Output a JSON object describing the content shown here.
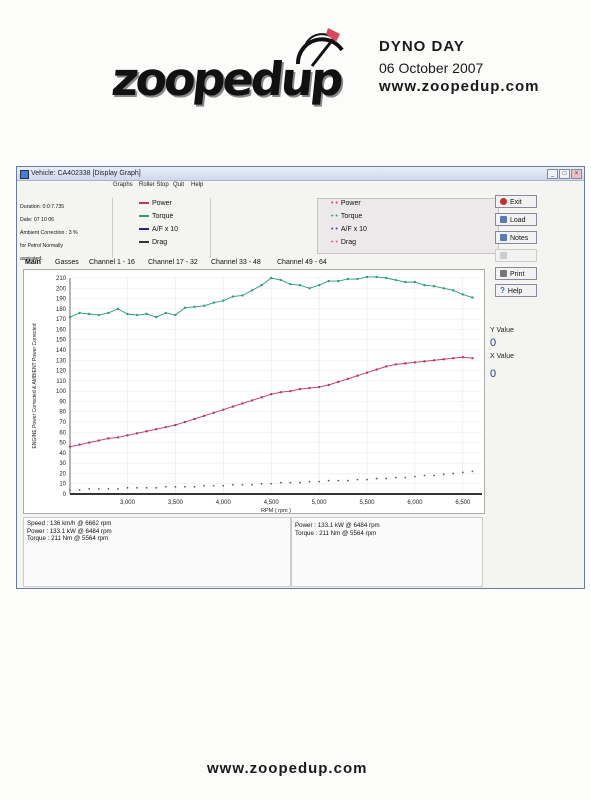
{
  "header": {
    "logo_text": "zoopedup",
    "event_title": "DYNO DAY",
    "event_date": "06 October 2007",
    "url": "www.zoopedup.com"
  },
  "window": {
    "title": "Vehicle: CA402338  [Display Graph]",
    "menu": [
      "Graphs",
      "Roller Stop",
      "Quit",
      "Help"
    ],
    "info_lines": [
      "Duration: 0:0:7.735",
      "Date: 07 10 06",
      "Ambient Correction : 3 %",
      "  for Petrol Normally",
      "  aspirated."
    ],
    "legend_left": [
      {
        "label": "Power",
        "color": "#b8365e"
      },
      {
        "label": "Torque",
        "color": "#2a9a7a"
      },
      {
        "label": "A/F x 10",
        "color": "#2a2a7a"
      },
      {
        "label": "Drag",
        "color": "#333333"
      }
    ],
    "legend_right": [
      {
        "label": "Power",
        "color": "#c04070"
      },
      {
        "label": "Torque",
        "color": "#2aa07a"
      },
      {
        "label": "A/F x 10",
        "color": "#444499"
      },
      {
        "label": "Drag",
        "color": "#cc6677"
      }
    ],
    "buttons": [
      {
        "label": "Exit",
        "icon": "exit-icon",
        "color": "#c03030"
      },
      {
        "label": "Load",
        "icon": "load-icon",
        "color": "#5a7ab0"
      },
      {
        "label": "Notes",
        "icon": "notes-icon",
        "color": "#5a7ab0"
      },
      {
        "label": "",
        "icon": "disabled-icon",
        "color": "#bbbbbb"
      },
      {
        "label": "Print",
        "icon": "print-icon",
        "color": "#666666"
      },
      {
        "label": "Help",
        "icon": "help-icon",
        "color": "#3a6ac0"
      }
    ],
    "tabs": [
      "Main",
      "Gasses",
      "Channel 1 - 16",
      "Channel 17 - 32",
      "Channel 33 - 48",
      "Channel 49 - 64"
    ],
    "y_value_label": "Y Value",
    "y_value": "0",
    "x_value_label": "X Value",
    "x_value": "0",
    "stats_left": [
      "Speed : 136 km/h @ 6662 rpm",
      "Power : 133.1 kW @ 6484 rpm",
      "Torque : 211 Nm @ 5564 rpm"
    ],
    "stats_right": [
      "Power : 133.1 kW @ 6484 rpm",
      "Torque : 211 Nm @ 5564 rpm"
    ]
  },
  "chart_data": {
    "type": "line",
    "xlabel": "RPM ( rpm )",
    "ylabel": "ENGINE Power Corrected & AMBIENT Power Corrected",
    "xlim": [
      2400,
      6700
    ],
    "ylim": [
      0,
      210
    ],
    "x_ticks": [
      3000,
      3500,
      4000,
      4500,
      5000,
      5500,
      6000,
      6500
    ],
    "x_tick_labels": [
      "3,000",
      "3,500",
      "4,000",
      "4,500",
      "5,000",
      "5,500",
      "6,000",
      "6,500"
    ],
    "y_ticks": [
      0,
      10,
      20,
      30,
      40,
      50,
      60,
      70,
      80,
      90,
      100,
      110,
      120,
      130,
      140,
      150,
      160,
      170,
      180,
      190,
      200,
      210
    ],
    "grid": true,
    "series": [
      {
        "name": "Torque",
        "color": "#2a9a7a",
        "x": [
          2400,
          2500,
          2600,
          2700,
          2800,
          2900,
          3000,
          3100,
          3200,
          3300,
          3400,
          3500,
          3600,
          3700,
          3800,
          3900,
          4000,
          4100,
          4200,
          4300,
          4400,
          4500,
          4600,
          4700,
          4800,
          4900,
          5000,
          5100,
          5200,
          5300,
          5400,
          5500,
          5600,
          5700,
          5800,
          5900,
          6000,
          6100,
          6200,
          6300,
          6400,
          6500,
          6600
        ],
        "y": [
          172,
          176,
          175,
          174,
          176,
          180,
          175,
          174,
          175,
          172,
          176,
          174,
          181,
          182,
          183,
          186,
          188,
          192,
          193,
          198,
          203,
          210,
          208,
          204,
          203,
          200,
          203,
          207,
          207,
          209,
          209,
          211,
          211,
          210,
          208,
          206,
          206,
          203,
          202,
          200,
          198,
          194,
          191
        ]
      },
      {
        "name": "Power",
        "color": "#b8365e",
        "x": [
          2400,
          2500,
          2600,
          2700,
          2800,
          2900,
          3000,
          3100,
          3200,
          3300,
          3400,
          3500,
          3600,
          3700,
          3800,
          3900,
          4000,
          4100,
          4200,
          4300,
          4400,
          4500,
          4600,
          4700,
          4800,
          4900,
          5000,
          5100,
          5200,
          5300,
          5400,
          5500,
          5600,
          5700,
          5800,
          5900,
          6000,
          6100,
          6200,
          6300,
          6400,
          6500,
          6600
        ],
        "y": [
          46,
          48,
          50,
          52,
          54,
          55,
          57,
          59,
          61,
          63,
          65,
          67,
          70,
          73,
          76,
          79,
          82,
          85,
          88,
          91,
          94,
          97,
          99,
          100,
          102,
          103,
          104,
          106,
          109,
          112,
          115,
          118,
          121,
          124,
          126,
          127,
          128,
          129,
          130,
          131,
          132,
          133,
          132
        ]
      },
      {
        "name": "A/F x 10",
        "color": "#555577",
        "x": [
          2400,
          2500,
          2600,
          2700,
          2800,
          2900,
          3000,
          3100,
          3200,
          3300,
          3400,
          3500,
          3600,
          3700,
          3800,
          3900,
          4000,
          4100,
          4200,
          4300,
          4400,
          4500,
          4600,
          4700,
          4800,
          4900,
          5000,
          5100,
          5200,
          5300,
          5400,
          5500,
          5600,
          5700,
          5800,
          5900,
          6000,
          6100,
          6200,
          6300,
          6400,
          6500,
          6600
        ],
        "y": [
          4,
          4,
          5,
          5,
          5,
          5,
          6,
          6,
          6,
          6,
          7,
          7,
          7,
          7,
          8,
          8,
          8,
          9,
          9,
          9,
          10,
          10,
          11,
          11,
          11,
          12,
          12,
          13,
          13,
          13,
          14,
          14,
          15,
          15,
          16,
          16,
          17,
          18,
          18,
          19,
          20,
          21,
          22
        ]
      },
      {
        "name": "Drag",
        "color": "#333333",
        "x": [
          2400,
          6700
        ],
        "y": [
          0,
          0
        ]
      }
    ]
  }
}
